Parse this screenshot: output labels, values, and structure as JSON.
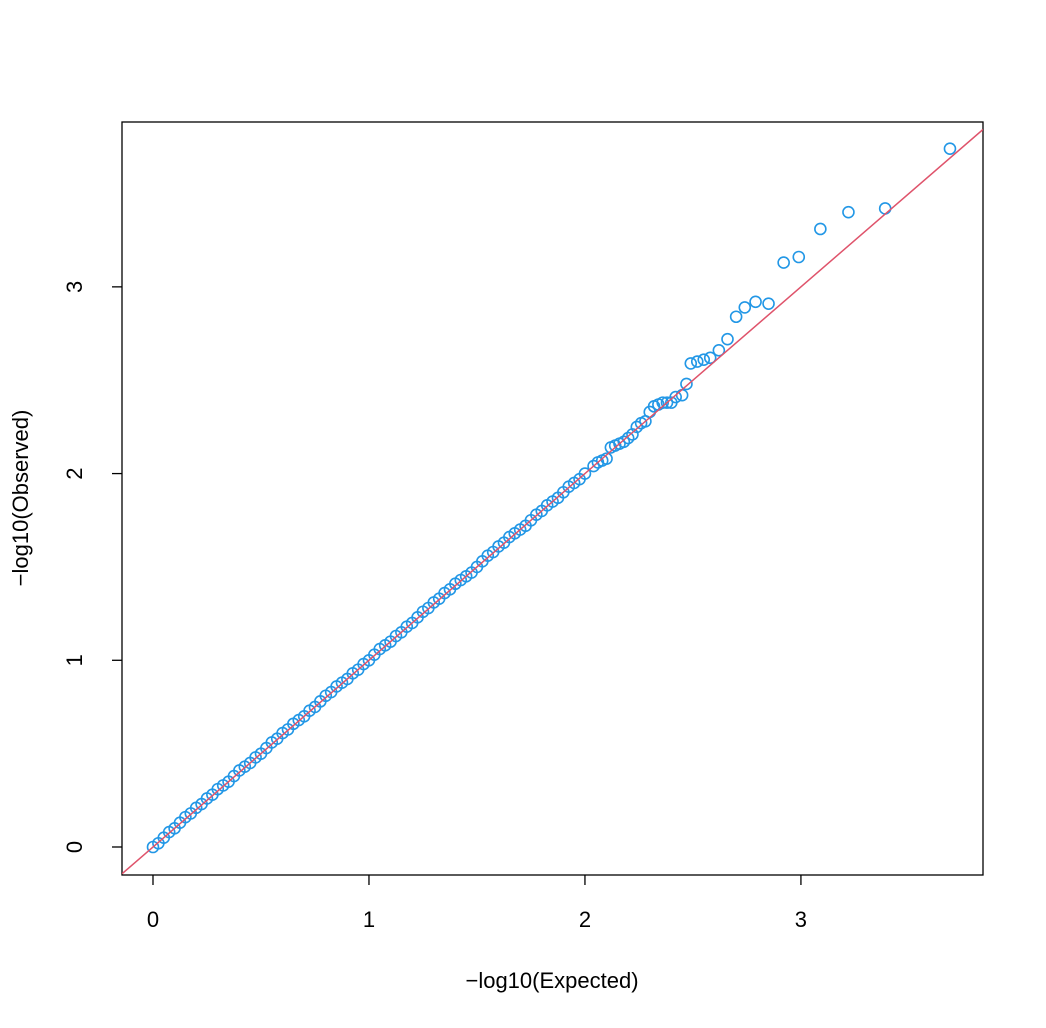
{
  "chart_data": {
    "type": "scatter",
    "x_label": "−log10(Expected)",
    "y_label": "−log10(Observed)",
    "xlim": [
      -0.1435,
      3.843
    ],
    "ylim": [
      -0.15,
      3.883
    ],
    "xticks": [
      0,
      1,
      2,
      3
    ],
    "yticks": [
      0,
      1,
      2,
      3
    ],
    "reference_line": {
      "intercept": 0,
      "slope": 1,
      "color": "#df536b"
    },
    "color": "#2297e6",
    "x": [
      0,
      0.025,
      0.05,
      0.075,
      0.1,
      0.125,
      0.15,
      0.175,
      0.2,
      0.225,
      0.25,
      0.275,
      0.3,
      0.325,
      0.35,
      0.375,
      0.4,
      0.425,
      0.45,
      0.475,
      0.5,
      0.525,
      0.55,
      0.575,
      0.6,
      0.625,
      0.65,
      0.675,
      0.7,
      0.725,
      0.75,
      0.775,
      0.8,
      0.825,
      0.85,
      0.875,
      0.9,
      0.925,
      0.95,
      0.975,
      1.0,
      1.025,
      1.05,
      1.075,
      1.1,
      1.125,
      1.15,
      1.175,
      1.2,
      1.225,
      1.25,
      1.275,
      1.3,
      1.325,
      1.35,
      1.375,
      1.4,
      1.425,
      1.45,
      1.475,
      1.5,
      1.525,
      1.55,
      1.575,
      1.6,
      1.625,
      1.65,
      1.675,
      1.7,
      1.725,
      1.75,
      1.775,
      1.8,
      1.825,
      1.85,
      1.875,
      1.9,
      1.925,
      1.95,
      1.975,
      2.0,
      2.04,
      2.06,
      2.08,
      2.1,
      2.12,
      2.14,
      2.16,
      2.18,
      2.2,
      2.22,
      2.24,
      2.26,
      2.28,
      2.3,
      2.32,
      2.34,
      2.36,
      2.38,
      2.4,
      2.42,
      2.45,
      2.47,
      2.49,
      2.52,
      2.55,
      2.58,
      2.62,
      2.66,
      2.7,
      2.74,
      2.79,
      2.85,
      2.92,
      2.99,
      3.09,
      3.22,
      3.39,
      3.69
    ],
    "values": [
      0,
      0.02,
      0.05,
      0.08,
      0.1,
      0.13,
      0.16,
      0.18,
      0.21,
      0.23,
      0.26,
      0.28,
      0.31,
      0.33,
      0.35,
      0.38,
      0.41,
      0.43,
      0.45,
      0.48,
      0.5,
      0.53,
      0.56,
      0.58,
      0.61,
      0.63,
      0.66,
      0.68,
      0.7,
      0.73,
      0.75,
      0.78,
      0.81,
      0.83,
      0.86,
      0.88,
      0.9,
      0.93,
      0.95,
      0.98,
      1.0,
      1.03,
      1.06,
      1.08,
      1.1,
      1.13,
      1.15,
      1.18,
      1.2,
      1.23,
      1.26,
      1.28,
      1.31,
      1.33,
      1.36,
      1.38,
      1.41,
      1.43,
      1.45,
      1.47,
      1.5,
      1.53,
      1.56,
      1.58,
      1.61,
      1.63,
      1.66,
      1.68,
      1.7,
      1.72,
      1.75,
      1.78,
      1.8,
      1.83,
      1.85,
      1.87,
      1.9,
      1.93,
      1.95,
      1.97,
      2.0,
      2.04,
      2.06,
      2.07,
      2.08,
      2.14,
      2.15,
      2.16,
      2.17,
      2.19,
      2.21,
      2.25,
      2.27,
      2.28,
      2.33,
      2.36,
      2.37,
      2.38,
      2.38,
      2.38,
      2.41,
      2.42,
      2.48,
      2.59,
      2.6,
      2.61,
      2.62,
      2.66,
      2.72,
      2.84,
      2.89,
      2.92,
      2.91,
      3.13,
      3.16,
      3.31,
      3.4,
      3.42,
      3.74
    ]
  }
}
